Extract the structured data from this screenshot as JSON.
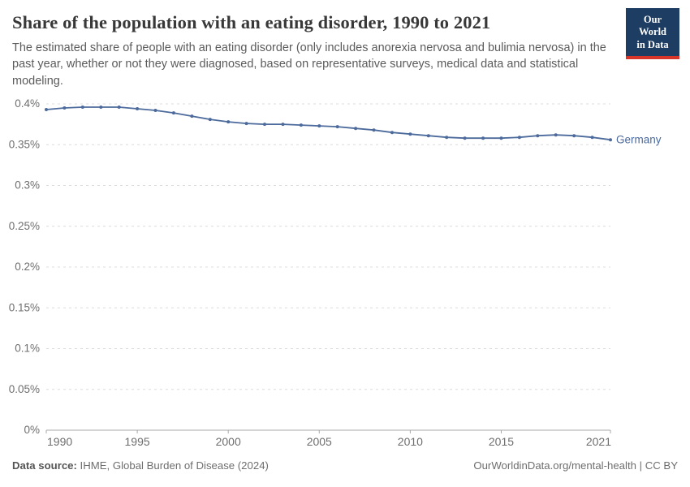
{
  "header": {
    "title": "Share of the population with an eating disorder, 1990 to 2021",
    "subtitle": "The estimated share of people with an eating disorder (only includes anorexia nervosa and bulimia nervosa) in the past year, whether or not they were diagnosed, based on representative surveys, medical data and statistical modeling."
  },
  "logo": {
    "line1": "Our World",
    "line2": "in Data",
    "bg_color": "#1d3d63",
    "stripe_color": "#d8352a"
  },
  "chart_data": {
    "type": "line",
    "title": "Share of the population with an eating disorder, 1990 to 2021",
    "xlabel": "",
    "ylabel": "",
    "x": [
      1990,
      1991,
      1992,
      1993,
      1994,
      1995,
      1996,
      1997,
      1998,
      1999,
      2000,
      2001,
      2002,
      2003,
      2004,
      2005,
      2006,
      2007,
      2008,
      2009,
      2010,
      2011,
      2012,
      2013,
      2014,
      2015,
      2016,
      2017,
      2018,
      2019,
      2020,
      2021
    ],
    "series": [
      {
        "name": "Germany",
        "color": "#4c6a9c",
        "values": [
          0.393,
          0.395,
          0.396,
          0.396,
          0.396,
          0.394,
          0.392,
          0.389,
          0.385,
          0.381,
          0.378,
          0.376,
          0.375,
          0.375,
          0.374,
          0.373,
          0.372,
          0.37,
          0.368,
          0.365,
          0.363,
          0.361,
          0.359,
          0.358,
          0.358,
          0.358,
          0.359,
          0.361,
          0.362,
          0.361,
          0.359,
          0.356
        ]
      }
    ],
    "ylim": [
      0,
      0.4
    ],
    "xlim": [
      1990,
      2021
    ],
    "grid": true,
    "legend": "end-of-line-label",
    "y_ticks": [
      {
        "value": 0,
        "label": "0%"
      },
      {
        "value": 0.05,
        "label": "0.05%"
      },
      {
        "value": 0.1,
        "label": "0.1%"
      },
      {
        "value": 0.15,
        "label": "0.15%"
      },
      {
        "value": 0.2,
        "label": "0.2%"
      },
      {
        "value": 0.25,
        "label": "0.25%"
      },
      {
        "value": 0.3,
        "label": "0.3%"
      },
      {
        "value": 0.35,
        "label": "0.35%"
      },
      {
        "value": 0.4,
        "label": "0.4%"
      }
    ],
    "x_ticks": [
      {
        "value": 1990,
        "label": "1990"
      },
      {
        "value": 1995,
        "label": "1995"
      },
      {
        "value": 2000,
        "label": "2000"
      },
      {
        "value": 2005,
        "label": "2005"
      },
      {
        "value": 2010,
        "label": "2010"
      },
      {
        "value": 2015,
        "label": "2015"
      },
      {
        "value": 2021,
        "label": "2021"
      }
    ],
    "colors": {
      "gridline": "#dcdcdc",
      "axis": "#a8a8a8",
      "tick_label": "#6e6e6e"
    }
  },
  "footer": {
    "source_label": "Data source:",
    "source_text": " IHME, Global Burden of Disease (2024)",
    "credit": "OurWorldinData.org/mental-health | CC BY"
  }
}
